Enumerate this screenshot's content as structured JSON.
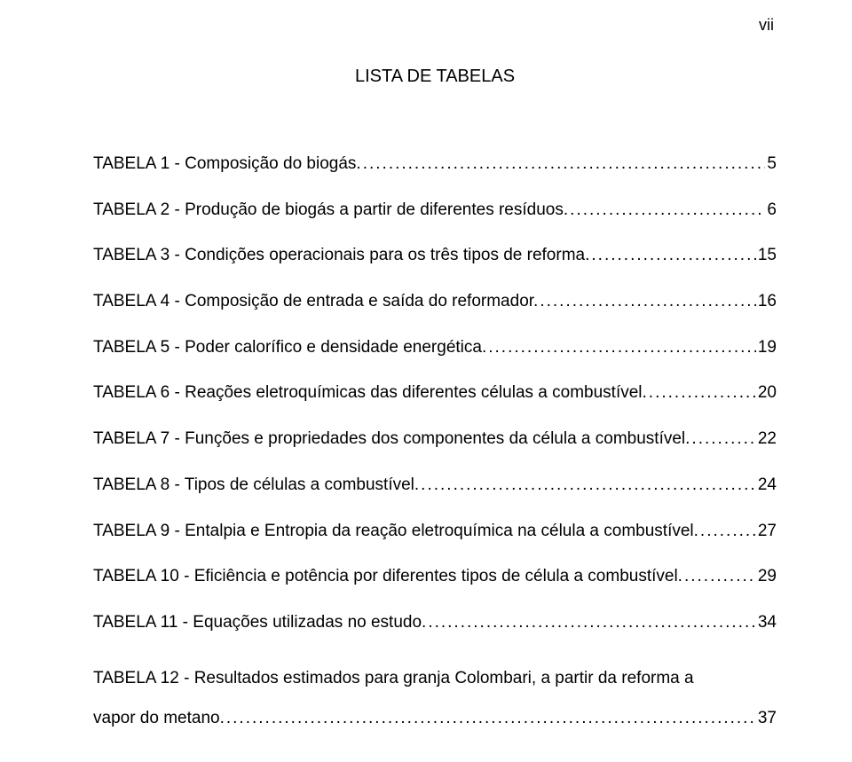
{
  "page_number": "vii",
  "title": "LISTA DE TABELAS",
  "entries": [
    {
      "text": "TABELA 1 - Composição do biogás.",
      "page": "5"
    },
    {
      "text": "TABELA 2 - Produção de biogás a partir de diferentes resíduos.",
      "page": "6"
    },
    {
      "text": "TABELA 3 - Condições operacionais para os três tipos de reforma.",
      "page": "15"
    },
    {
      "text": "TABELA 4 - Composição de entrada e saída do reformador.",
      "page": "16"
    },
    {
      "text": "TABELA 5 - Poder calorífico e densidade energética.",
      "page": "19"
    },
    {
      "text": "TABELA 6 - Reações eletroquímicas das diferentes células a combustível.",
      "page": "20"
    },
    {
      "text": "TABELA 7 - Funções e propriedades dos componentes da célula a combustível.",
      "page": "22"
    },
    {
      "text": "TABELA 8 - Tipos de células a combustível.",
      "page": "24"
    },
    {
      "text": "TABELA 9 - Entalpia e Entropia da reação eletroquímica na célula a combustível.",
      "page": "27"
    },
    {
      "text": "TABELA 10 - Eficiência e potência por diferentes tipos de célula a combustível.",
      "page": "29"
    },
    {
      "text": "TABELA 11 - Equações utilizadas no estudo.",
      "page": "34"
    },
    {
      "text_line1": "TABELA 12 - Resultados estimados para granja Colombari, a partir da reforma a",
      "text_line2": "vapor do metano.",
      "page": "37"
    }
  ],
  "colors": {
    "background": "#ffffff",
    "text": "#000000"
  },
  "typography": {
    "font_family": "Arial",
    "body_fontsize": 19,
    "title_fontsize": 20
  }
}
